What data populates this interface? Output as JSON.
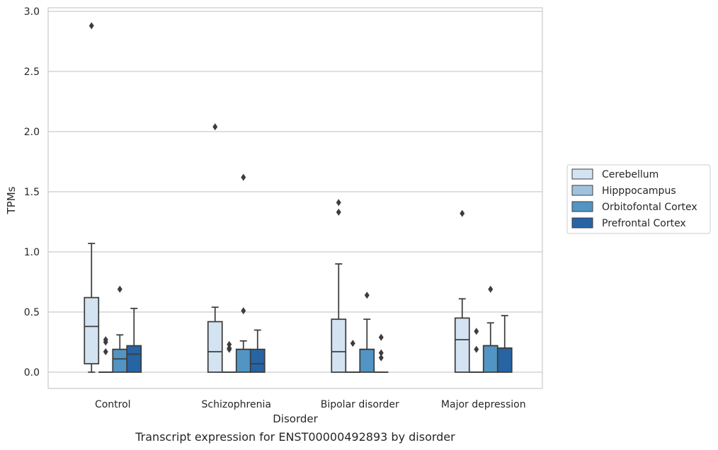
{
  "chart_data": {
    "type": "box",
    "xlabel": "Disorder",
    "ylabel": "TPMs",
    "caption": "Transcript expression for ENST00000492893 by disorder",
    "ylim": [
      -0.14,
      3.04
    ],
    "yticks": [
      "0.0",
      "0.5",
      "1.0",
      "1.5",
      "2.0",
      "2.5",
      "3.0"
    ],
    "ytick_values": [
      0,
      0.5,
      1.0,
      1.5,
      2.0,
      2.5,
      3.0
    ],
    "grid": "horizontal",
    "legend_position": "right",
    "categories": [
      "Control",
      "Schizophrenia",
      "Bipolar disorder",
      "Major depression"
    ],
    "series": [
      {
        "name": "Cerebellum",
        "color": "#d4e3f2",
        "boxes": [
          {
            "whisker_low": 0,
            "q1": 0.07,
            "median": 0.38,
            "q3": 0.62,
            "whisker_high": 1.07,
            "outliers": [
              2.88
            ]
          },
          {
            "whisker_low": 0,
            "q1": 0,
            "median": 0.17,
            "q3": 0.42,
            "whisker_high": 0.54,
            "outliers": [
              2.04
            ]
          },
          {
            "whisker_low": 0,
            "q1": 0,
            "median": 0.17,
            "q3": 0.44,
            "whisker_high": 0.9,
            "outliers": [
              1.41,
              1.33
            ]
          },
          {
            "whisker_low": 0,
            "q1": 0,
            "median": 0.27,
            "q3": 0.45,
            "whisker_high": 0.61,
            "outliers": [
              1.32
            ]
          }
        ]
      },
      {
        "name": "Hipppocampus",
        "color": "#9fc3df",
        "boxes": [
          {
            "whisker_low": 0,
            "q1": 0,
            "median": 0,
            "q3": 0,
            "whisker_high": 0,
            "outliers": [
              0.27,
              0.25,
              0.17
            ]
          },
          {
            "whisker_low": 0,
            "q1": 0,
            "median": 0,
            "q3": 0,
            "whisker_high": 0,
            "outliers": [
              0.23,
              0.2,
              0.19
            ]
          },
          {
            "whisker_low": 0,
            "q1": 0,
            "median": 0,
            "q3": 0,
            "whisker_high": 0,
            "outliers": [
              0.24
            ]
          },
          {
            "whisker_low": 0,
            "q1": 0,
            "median": 0,
            "q3": 0,
            "whisker_high": 0,
            "outliers": [
              0.34,
              0.19
            ]
          }
        ]
      },
      {
        "name": "Orbitofontal Cortex",
        "color": "#5295c4",
        "boxes": [
          {
            "whisker_low": 0,
            "q1": 0,
            "median": 0.11,
            "q3": 0.19,
            "whisker_high": 0.31,
            "outliers": [
              0.69
            ]
          },
          {
            "whisker_low": 0,
            "q1": 0,
            "median": 0.19,
            "q3": 0.19,
            "whisker_high": 0.26,
            "outliers": [
              0.51,
              1.62
            ]
          },
          {
            "whisker_low": 0,
            "q1": 0,
            "median": 0.19,
            "q3": 0.19,
            "whisker_high": 0.44,
            "outliers": [
              0.64
            ]
          },
          {
            "whisker_low": 0,
            "q1": 0,
            "median": 0.22,
            "q3": 0.22,
            "whisker_high": 0.41,
            "outliers": [
              0.69
            ]
          }
        ]
      },
      {
        "name": "Prefrontal Cortex",
        "color": "#2664a4",
        "boxes": [
          {
            "whisker_low": 0,
            "q1": 0,
            "median": 0.15,
            "q3": 0.22,
            "whisker_high": 0.53,
            "outliers": []
          },
          {
            "whisker_low": 0,
            "q1": 0,
            "median": 0.07,
            "q3": 0.19,
            "whisker_high": 0.35,
            "outliers": []
          },
          {
            "whisker_low": 0,
            "q1": 0,
            "median": 0,
            "q3": 0,
            "whisker_high": 0,
            "outliers": [
              0.29,
              0.16,
              0.12
            ]
          },
          {
            "whisker_low": 0,
            "q1": 0,
            "median": 0.2,
            "q3": 0.2,
            "whisker_high": 0.47,
            "outliers": []
          }
        ]
      }
    ]
  }
}
